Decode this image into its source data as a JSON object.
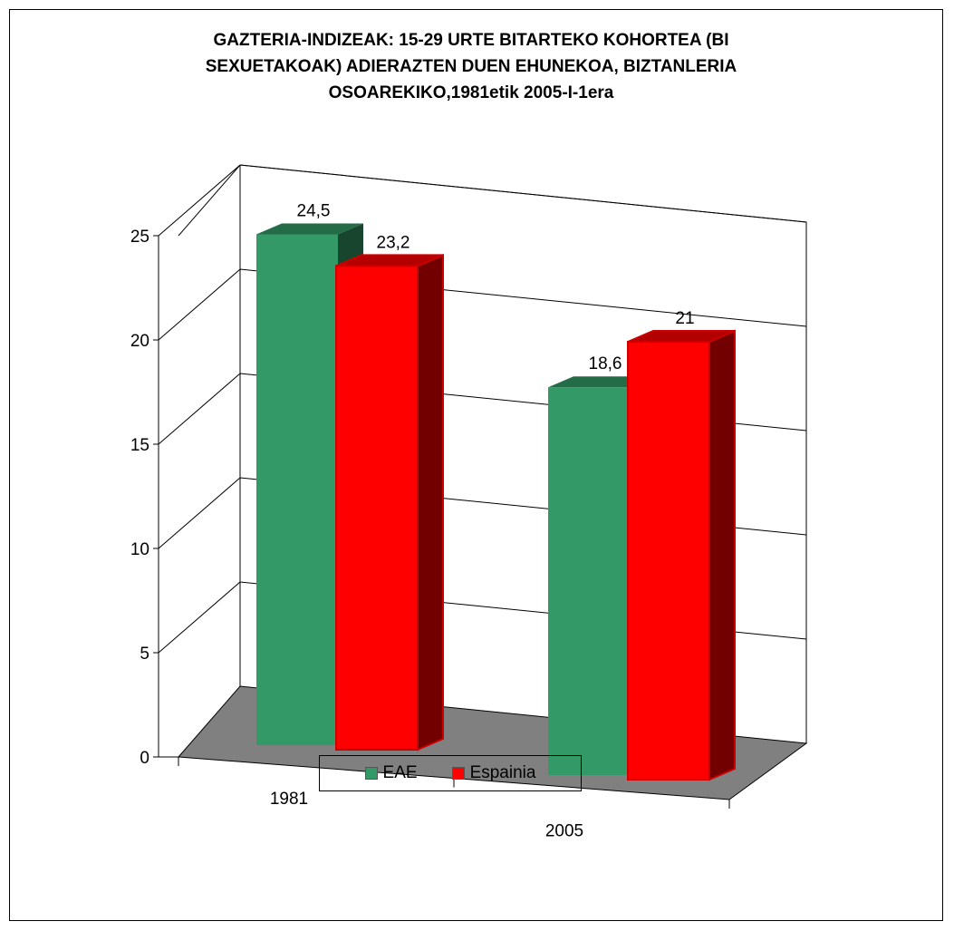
{
  "chart_data": {
    "type": "bar",
    "title": "GAZTERIA-INDIZEAK: 15-29 URTE BITARTEKO KOHORTEA (BI\nSEXUETAKOAK) ADIERAZTEN DUEN EHUNEKOA, BIZTANLERIA\nOSOAREKIKO,1981etik 2005-I-1era",
    "categories": [
      "1981",
      "2005"
    ],
    "series": [
      {
        "name": "EAE",
        "values": [
          24.5,
          18.6
        ],
        "labels": [
          "24,5",
          "18,6"
        ],
        "color": "#339966"
      },
      {
        "name": "Espainia",
        "values": [
          23.2,
          21
        ],
        "labels": [
          "23,2",
          "21"
        ],
        "color": "#ff0000"
      }
    ],
    "yticks": [
      "0",
      "5",
      "10",
      "15",
      "20",
      "25"
    ],
    "ylim": [
      0,
      25
    ],
    "grid": true,
    "legend": "bottom",
    "floor_color": "#808080"
  }
}
